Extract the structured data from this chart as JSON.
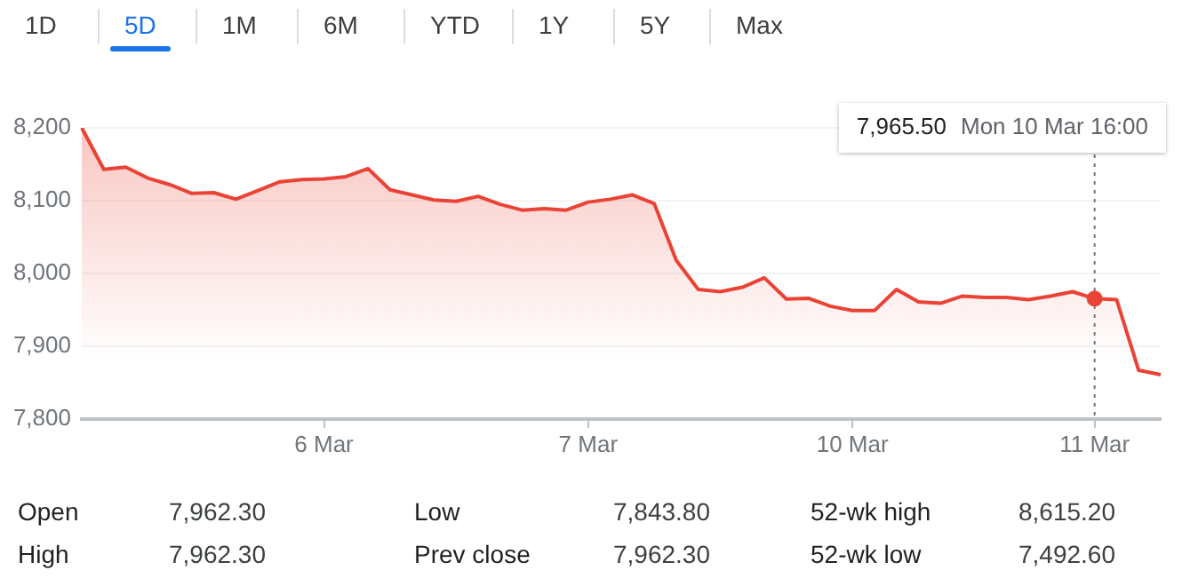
{
  "chart_data": {
    "type": "area",
    "color": "#ea4335",
    "categories": [
      null,
      null,
      null,
      null,
      null,
      null,
      null,
      null,
      null,
      null,
      null,
      "6 Mar",
      null,
      null,
      null,
      null,
      null,
      null,
      null,
      null,
      null,
      null,
      null,
      "7 Mar",
      null,
      null,
      null,
      null,
      null,
      null,
      null,
      null,
      null,
      null,
      null,
      "10 Mar",
      null,
      null,
      null,
      null,
      null,
      null,
      null,
      null,
      null,
      null,
      "11 Mar",
      null,
      null,
      null
    ],
    "values": [
      8200,
      8143,
      8146,
      8131,
      8122,
      8110,
      8111,
      8102,
      8114,
      8126,
      8129,
      8130,
      8133,
      8144,
      8115,
      8108,
      8101,
      8099,
      8106,
      8095,
      8087,
      8089,
      8087,
      8098,
      8102,
      8108,
      8096,
      8018,
      7978,
      7975,
      7981,
      7994,
      7965,
      7966,
      7955,
      7949,
      7949,
      7978,
      7961,
      7959,
      7969,
      7967,
      7967,
      7964,
      7969,
      7975,
      7965.5,
      7964,
      7867,
      7861
    ],
    "ylim": [
      7800,
      8200
    ],
    "yticks": [
      {
        "value": 7800,
        "label": "7,800"
      },
      {
        "value": 7900,
        "label": "7,900"
      },
      {
        "value": 8000,
        "label": "8,000"
      },
      {
        "value": 8100,
        "label": "8,100"
      },
      {
        "value": 8200,
        "label": "8,200"
      }
    ],
    "grid": "y",
    "legend": false,
    "marker": "none",
    "line_style": "solid",
    "ref_lines": [
      {
        "axis": "x",
        "value": "11 Mar",
        "line_style": "dotted",
        "color": "#70757a"
      }
    ],
    "annotations": [
      "7,965.50  Mon 10 Mar 16:00",
      "1D",
      "5D",
      "1M",
      "6M",
      "YTD",
      "1Y",
      "5Y",
      "Max",
      "Open",
      "7,962.30",
      "Low",
      "7,843.80",
      "52-wk high",
      "8,615.20",
      "High",
      "7,962.30",
      "Prev close",
      "7,962.30",
      "52-wk low",
      "7,492.60"
    ]
  }
}
